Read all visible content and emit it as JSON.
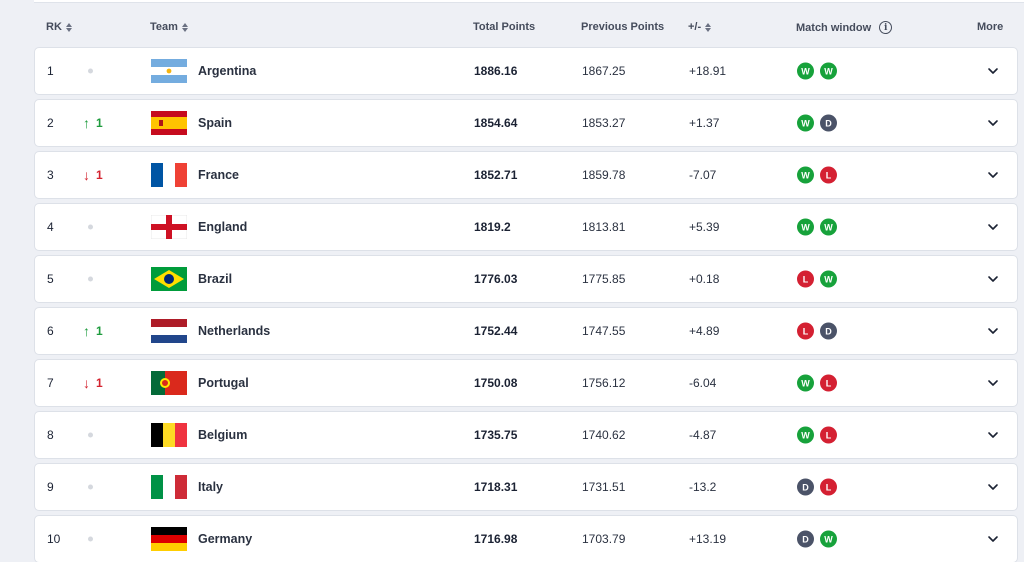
{
  "header": {
    "rank": "RK",
    "team": "Team",
    "total": "Total Points",
    "previous": "Previous Points",
    "diff": "+/-",
    "window": "Match window",
    "more": "More"
  },
  "colors": {
    "W": "#17a23b",
    "D": "#4b5368",
    "L": "#d42032"
  },
  "rows": [
    {
      "rank": "1",
      "move": "none",
      "change": "",
      "team": "Argentina",
      "flag": "argentina-flag",
      "total": "1886.16",
      "previous": "1867.25",
      "diff": "+18.91",
      "results": [
        "W",
        "W"
      ]
    },
    {
      "rank": "2",
      "move": "up",
      "change": "1",
      "team": "Spain",
      "flag": "spain-flag",
      "total": "1854.64",
      "previous": "1853.27",
      "diff": "+1.37",
      "results": [
        "W",
        "D"
      ]
    },
    {
      "rank": "3",
      "move": "down",
      "change": "1",
      "team": "France",
      "flag": "france-flag",
      "total": "1852.71",
      "previous": "1859.78",
      "diff": "-7.07",
      "results": [
        "W",
        "L"
      ]
    },
    {
      "rank": "4",
      "move": "none",
      "change": "",
      "team": "England",
      "flag": "england-flag",
      "total": "1819.2",
      "previous": "1813.81",
      "diff": "+5.39",
      "results": [
        "W",
        "W"
      ]
    },
    {
      "rank": "5",
      "move": "none",
      "change": "",
      "team": "Brazil",
      "flag": "brazil-flag",
      "total": "1776.03",
      "previous": "1775.85",
      "diff": "+0.18",
      "results": [
        "L",
        "W"
      ]
    },
    {
      "rank": "6",
      "move": "up",
      "change": "1",
      "team": "Netherlands",
      "flag": "netherlands-flag",
      "total": "1752.44",
      "previous": "1747.55",
      "diff": "+4.89",
      "results": [
        "L",
        "D"
      ]
    },
    {
      "rank": "7",
      "move": "down",
      "change": "1",
      "team": "Portugal",
      "flag": "portugal-flag",
      "total": "1750.08",
      "previous": "1756.12",
      "diff": "-6.04",
      "results": [
        "W",
        "L"
      ]
    },
    {
      "rank": "8",
      "move": "none",
      "change": "",
      "team": "Belgium",
      "flag": "belgium-flag",
      "total": "1735.75",
      "previous": "1740.62",
      "diff": "-4.87",
      "results": [
        "W",
        "L"
      ]
    },
    {
      "rank": "9",
      "move": "none",
      "change": "",
      "team": "Italy",
      "flag": "italy-flag",
      "total": "1718.31",
      "previous": "1731.51",
      "diff": "-13.2",
      "results": [
        "D",
        "L"
      ]
    },
    {
      "rank": "10",
      "move": "none",
      "change": "",
      "team": "Germany",
      "flag": "germany-flag",
      "total": "1716.98",
      "previous": "1703.79",
      "diff": "+13.19",
      "results": [
        "D",
        "W"
      ]
    }
  ]
}
